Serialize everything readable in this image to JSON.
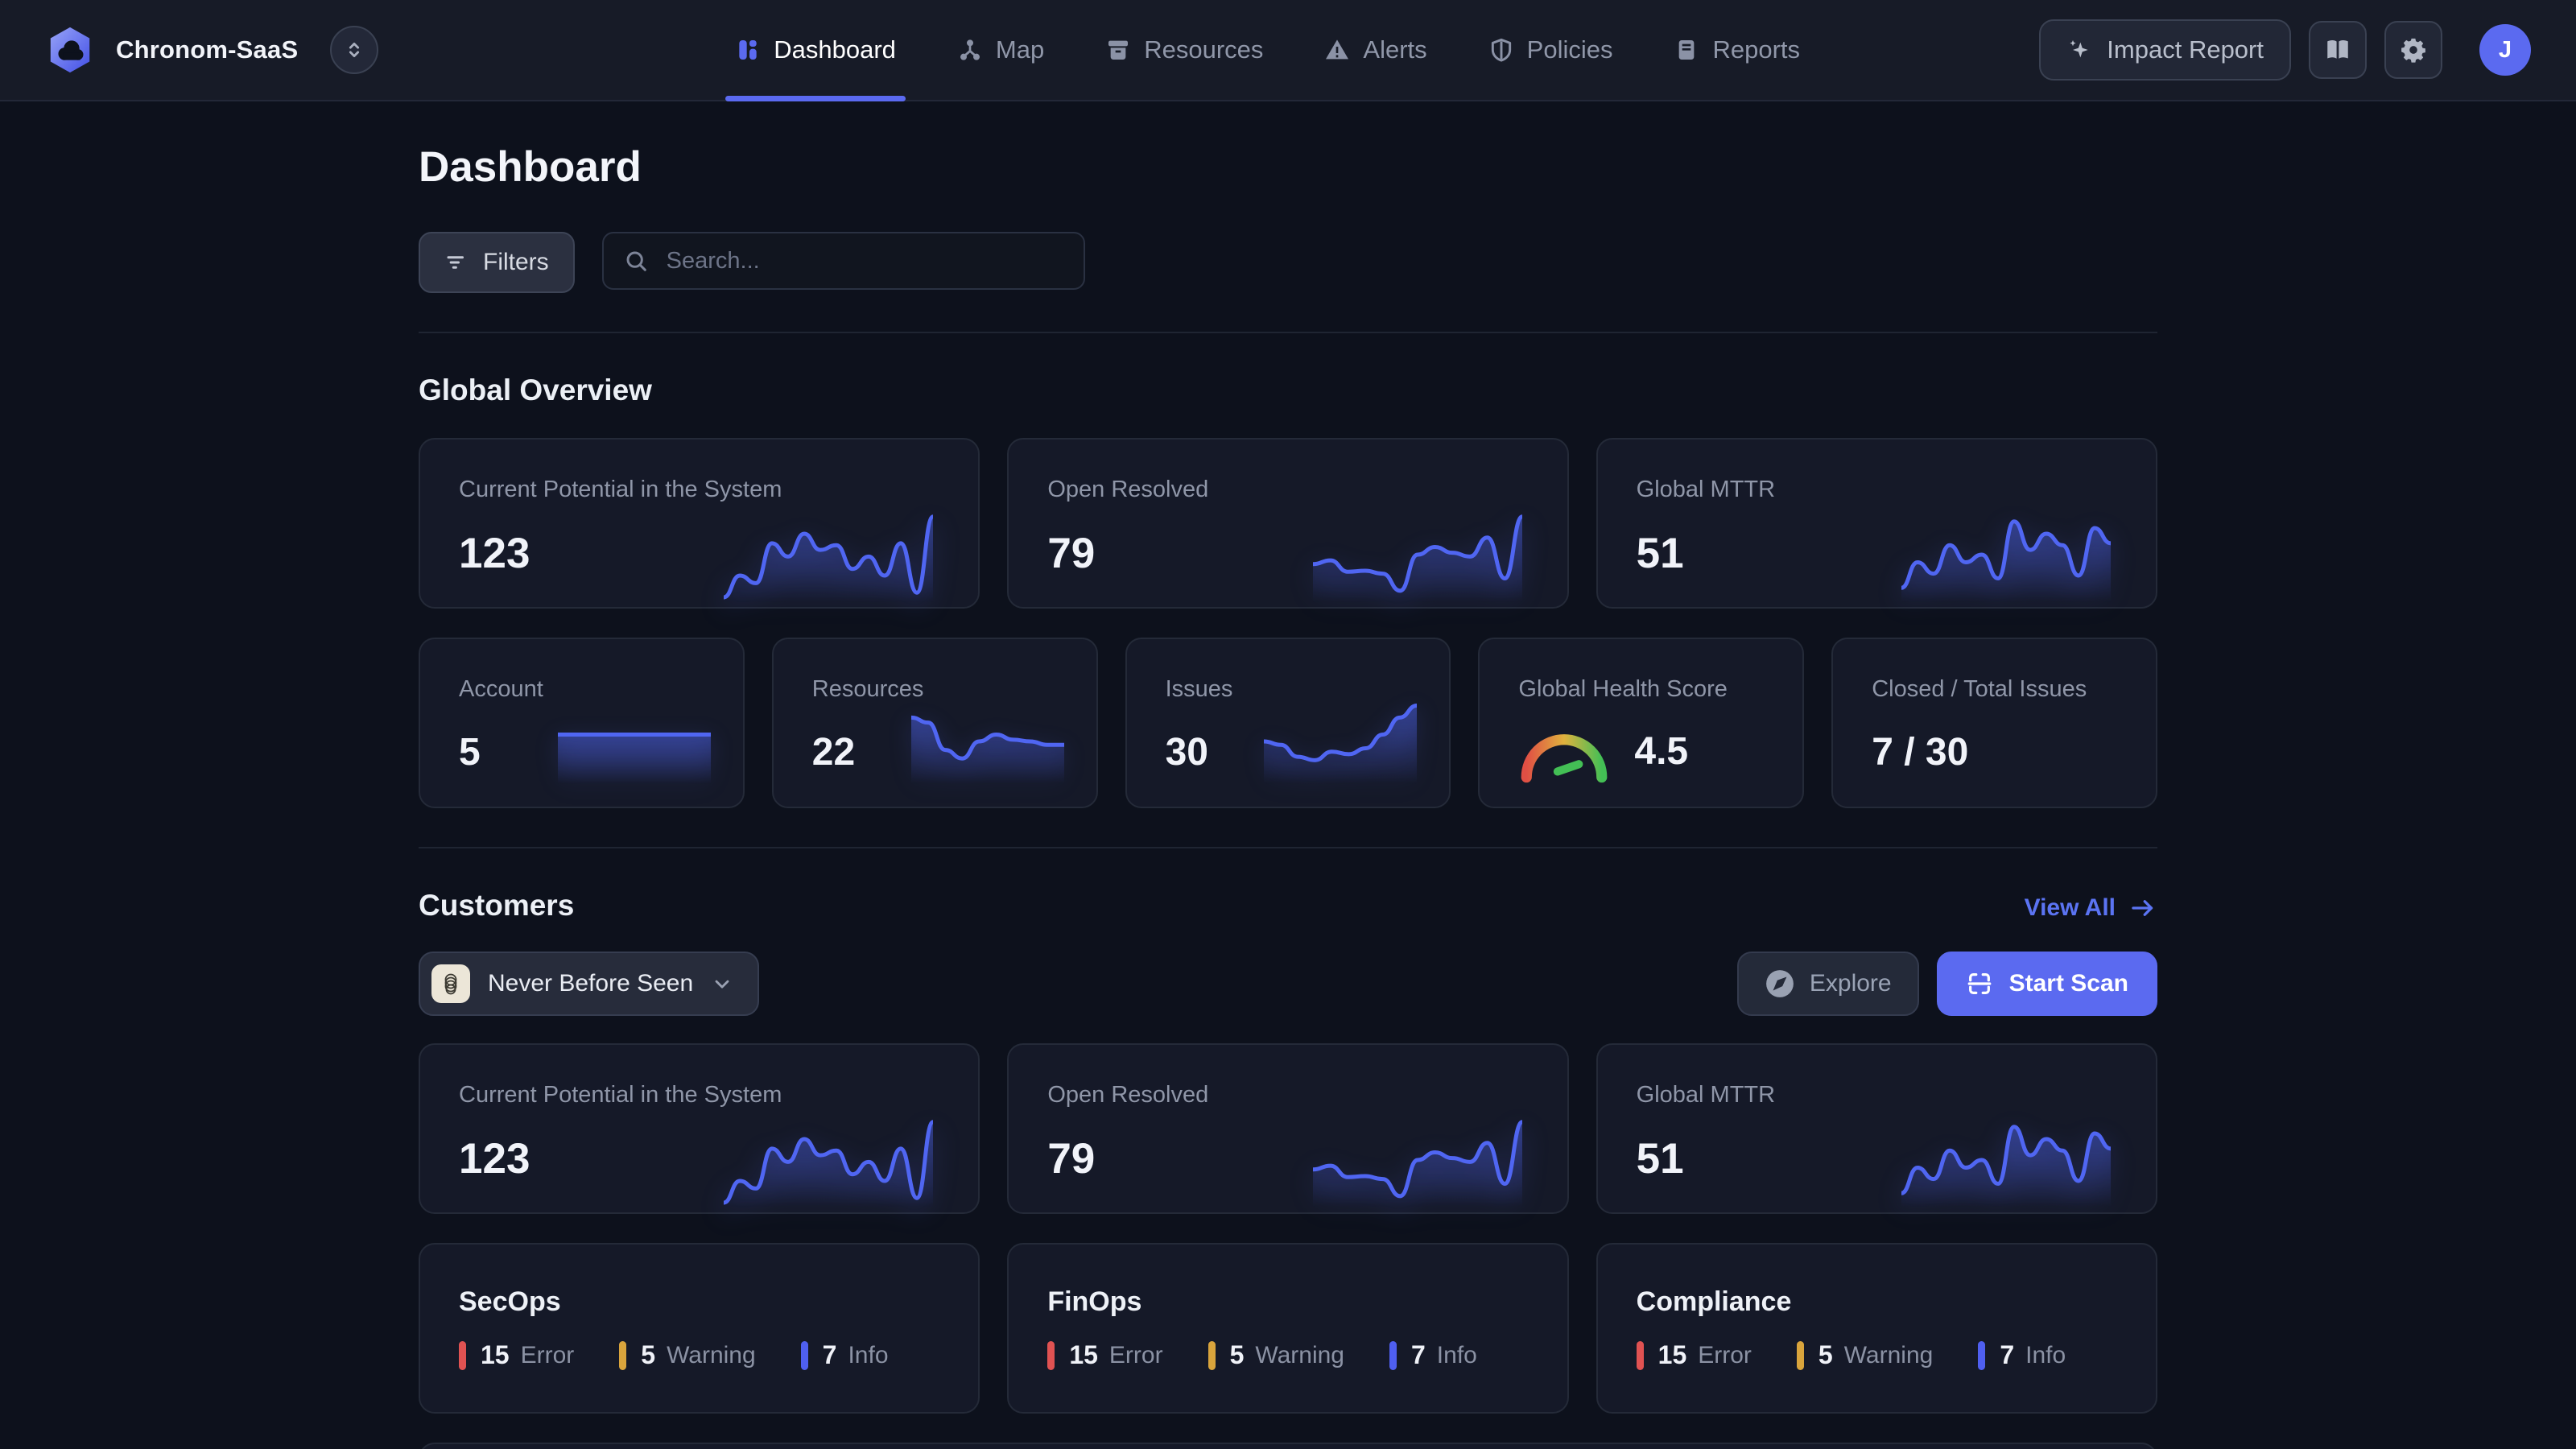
{
  "brand": {
    "name": "Chronom-SaaS"
  },
  "nav": {
    "items": [
      {
        "label": "Dashboard",
        "active": true
      },
      {
        "label": "Map",
        "active": false
      },
      {
        "label": "Resources",
        "active": false
      },
      {
        "label": "Alerts",
        "active": false
      },
      {
        "label": "Policies",
        "active": false
      },
      {
        "label": "Reports",
        "active": false
      }
    ]
  },
  "header_actions": {
    "impact_report": "Impact Report",
    "avatar_initial": "J"
  },
  "page": {
    "title": "Dashboard",
    "filters_label": "Filters",
    "search_placeholder": "Search..."
  },
  "global_overview": {
    "title": "Global Overview",
    "metric_cards": [
      {
        "label": "Current Potential in the System",
        "value": "123",
        "spark": [
          5,
          28,
          20,
          62,
          48,
          72,
          55,
          60,
          35,
          48,
          28,
          62,
          10,
          90
        ]
      },
      {
        "label": "Open Resolved",
        "value": "79",
        "spark": [
          40,
          44,
          32,
          33,
          30,
          12,
          50,
          58,
          52,
          48,
          68,
          25,
          90
        ]
      },
      {
        "label": "Global MTTR",
        "value": "51",
        "spark": [
          15,
          42,
          30,
          60,
          42,
          50,
          25,
          85,
          55,
          72,
          60,
          28,
          78,
          62
        ]
      }
    ],
    "stat_cards": [
      {
        "label": "Account",
        "value": "5",
        "spark": [
          58,
          58,
          58,
          58,
          58
        ]
      },
      {
        "label": "Resources",
        "value": "22",
        "spark": [
          78,
          72,
          40,
          30,
          50,
          58,
          52,
          50,
          46,
          46
        ]
      },
      {
        "label": "Issues",
        "value": "30",
        "spark": [
          50,
          46,
          32,
          28,
          38,
          35,
          42,
          58,
          78,
          92
        ]
      },
      {
        "label": "Global Health Score",
        "value": "4.5"
      },
      {
        "label": "Closed / Total Issues",
        "value": "7 / 30"
      }
    ]
  },
  "customers": {
    "title": "Customers",
    "view_all": "View All",
    "filter_selected": "Never Before Seen",
    "explore_label": "Explore",
    "start_scan_label": "Start Scan",
    "metric_cards": [
      {
        "label": "Current Potential in the System",
        "value": "123",
        "spark": [
          5,
          28,
          20,
          62,
          48,
          72,
          55,
          60,
          35,
          48,
          28,
          62,
          10,
          90
        ]
      },
      {
        "label": "Open Resolved",
        "value": "79",
        "spark": [
          40,
          44,
          32,
          33,
          30,
          12,
          50,
          58,
          52,
          48,
          68,
          25,
          90
        ]
      },
      {
        "label": "Global MTTR",
        "value": "51",
        "spark": [
          15,
          42,
          30,
          60,
          42,
          50,
          25,
          85,
          55,
          72,
          60,
          28,
          78,
          62
        ]
      }
    ],
    "service_cards": [
      {
        "title": "SecOps",
        "severities": [
          {
            "count": "15",
            "label": "Error",
            "type": "error"
          },
          {
            "count": "5",
            "label": "Warning",
            "type": "warning"
          },
          {
            "count": "7",
            "label": "Info",
            "type": "info"
          }
        ]
      },
      {
        "title": "FinOps",
        "severities": [
          {
            "count": "15",
            "label": "Error",
            "type": "error"
          },
          {
            "count": "5",
            "label": "Warning",
            "type": "warning"
          },
          {
            "count": "7",
            "label": "Info",
            "type": "info"
          }
        ]
      },
      {
        "title": "Compliance",
        "severities": [
          {
            "count": "15",
            "label": "Error",
            "type": "error"
          },
          {
            "count": "5",
            "label": "Warning",
            "type": "warning"
          },
          {
            "count": "7",
            "label": "Info",
            "type": "info"
          }
        ]
      }
    ]
  },
  "colors": {
    "accent": "#5b6af0",
    "spark": "#5066f2",
    "error": "#e05252",
    "warning": "#d9a43c",
    "info": "#4f5ff0",
    "gauge_red": "#e04f44",
    "gauge_yellow": "#e0b23e",
    "gauge_green": "#43bf55"
  }
}
